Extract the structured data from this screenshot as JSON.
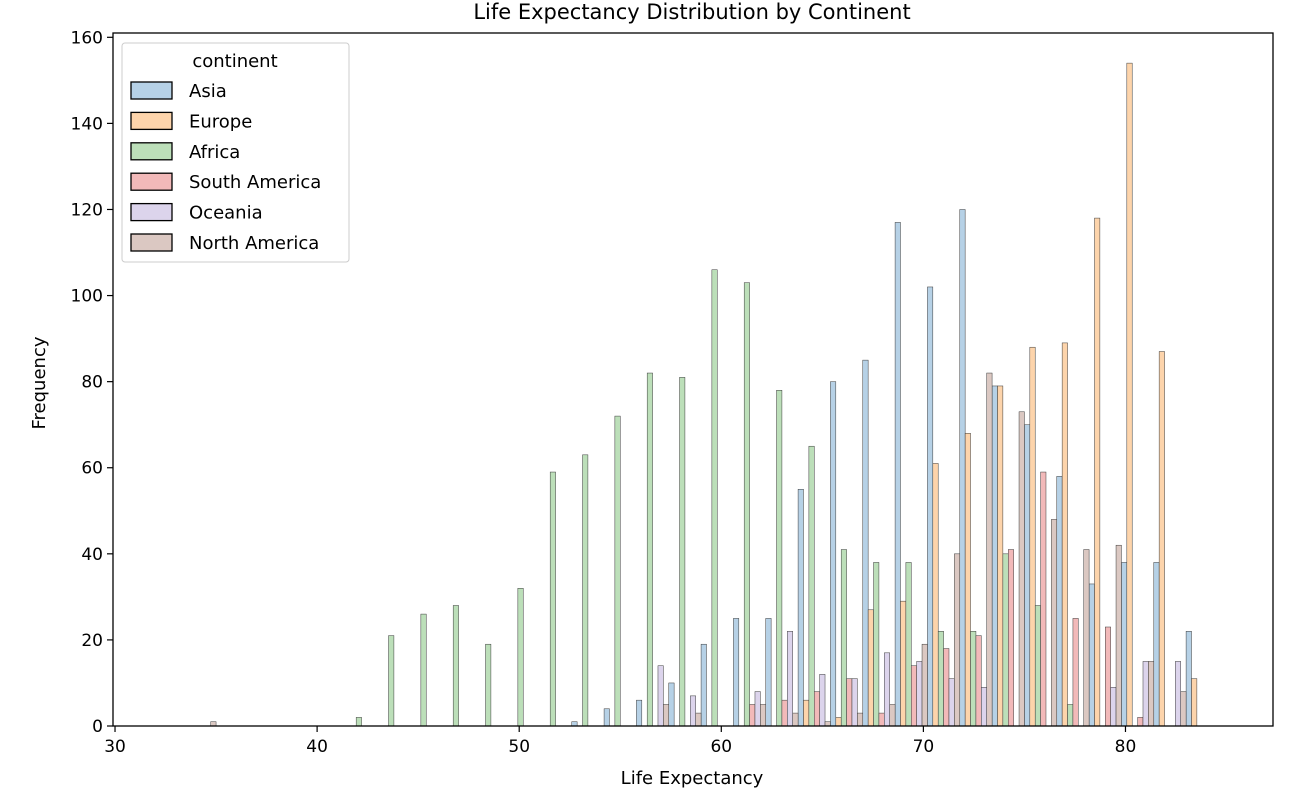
{
  "chart_data": {
    "type": "bar",
    "title": "Life Expectancy Distribution by Continent",
    "xlabel": "Life Expectancy",
    "ylabel": "Frequency",
    "xlim": [
      29.9,
      87.3
    ],
    "ylim": [
      0,
      161
    ],
    "xticks": [
      30,
      40,
      50,
      60,
      70,
      80
    ],
    "yticks": [
      0,
      20,
      40,
      60,
      80,
      100,
      120,
      140,
      160
    ],
    "bins": [
      34.2,
      35.8,
      37.4,
      39.0,
      40.6,
      42.2,
      43.8,
      45.4,
      47.0,
      48.6,
      50.2,
      51.8,
      53.4,
      55.0,
      56.6,
      58.2,
      59.8,
      61.4,
      63.0,
      64.6,
      66.2,
      67.8,
      69.4,
      71.0,
      72.6,
      74.2,
      75.8,
      77.4,
      79.0,
      80.6,
      82.2,
      83.8
    ],
    "grid": false,
    "legend": {
      "title": "continent",
      "position": "upper-left"
    },
    "series": [
      {
        "name": "Asia",
        "color": "#b6d1e6",
        "values": [
          0,
          0,
          0,
          0,
          0,
          0,
          0,
          0,
          0,
          0,
          0,
          0,
          1,
          4,
          6,
          10,
          19,
          25,
          25,
          55,
          80,
          85,
          117,
          102,
          120,
          79,
          70,
          58,
          33,
          38,
          38,
          22
        ]
      },
      {
        "name": "Europe",
        "color": "#fdd4ab",
        "values": [
          0,
          0,
          0,
          0,
          0,
          0,
          0,
          0,
          0,
          0,
          0,
          0,
          0,
          0,
          0,
          0,
          0,
          0,
          0,
          6,
          2,
          27,
          29,
          61,
          68,
          79,
          88,
          89,
          118,
          154,
          87,
          11
        ]
      },
      {
        "name": "Africa",
        "color": "#bcdfb9",
        "values": [
          0,
          0,
          0,
          0,
          0,
          2,
          21,
          26,
          28,
          19,
          32,
          59,
          63,
          72,
          82,
          81,
          106,
          103,
          78,
          65,
          41,
          38,
          38,
          22,
          22,
          40,
          28,
          5,
          0,
          0,
          0,
          0
        ]
      },
      {
        "name": "South America",
        "color": "#f2b9b9",
        "values": [
          0,
          0,
          0,
          0,
          0,
          0,
          0,
          0,
          0,
          0,
          0,
          0,
          0,
          0,
          0,
          0,
          0,
          5,
          6,
          8,
          11,
          3,
          14,
          18,
          21,
          41,
          59,
          25,
          23,
          2,
          0,
          0
        ]
      },
      {
        "name": "Oceania",
        "color": "#dcd4ec",
        "values": [
          0,
          0,
          0,
          0,
          0,
          0,
          0,
          0,
          0,
          0,
          0,
          0,
          0,
          0,
          14,
          7,
          0,
          8,
          22,
          12,
          11,
          17,
          15,
          11,
          9,
          0,
          0,
          0,
          9,
          15,
          15,
          0
        ]
      },
      {
        "name": "North America",
        "color": "#dbc8c2",
        "values": [
          1,
          0,
          0,
          0,
          0,
          0,
          0,
          0,
          0,
          0,
          0,
          0,
          0,
          0,
          5,
          3,
          0,
          5,
          3,
          1,
          3,
          5,
          19,
          40,
          82,
          73,
          48,
          41,
          42,
          15,
          8,
          0
        ]
      }
    ]
  }
}
